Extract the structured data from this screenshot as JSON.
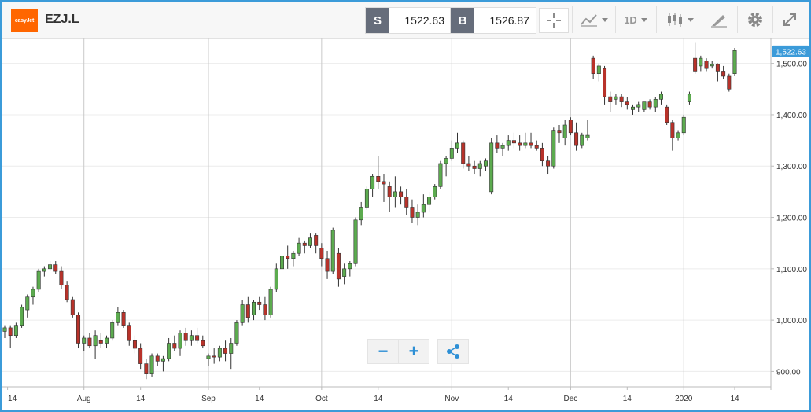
{
  "header": {
    "logo_text": "easyJet",
    "symbol": "EZJ.L",
    "sell_letter": "S",
    "sell_price": "1522.63",
    "buy_letter": "B",
    "buy_price": "1526.87",
    "interval_label": "1D"
  },
  "icons": {
    "crosshair": "crosshair-icon",
    "chart_type": "line-chart-icon",
    "candles": "candlestick-icon",
    "draw": "pencil-ruler-icon",
    "settings": "gear-icon",
    "fullscreen": "expand-icon",
    "zoom_out": "minus-icon",
    "zoom_in": "plus-icon",
    "share": "share-icon"
  },
  "zoom": {
    "out_label": "−",
    "in_label": "+"
  },
  "colors": {
    "up": "#5cab4f",
    "down": "#b8322a",
    "accent": "#3b9bd9",
    "grid": "#ececec",
    "month_line": "#c9c9c9"
  },
  "chart_data": {
    "type": "candlestick",
    "ylim": [
      870,
      1550
    ],
    "yticks": [
      900,
      1000,
      1100,
      1200,
      1300,
      1400,
      1500
    ],
    "ytick_labels": [
      "900.00",
      "1,000.00",
      "1,100.00",
      "1,200.00",
      "1,300.00",
      "1,400.00",
      "1,500.00"
    ],
    "last_price": 1522.63,
    "last_price_label": "1,522.63",
    "x_labels": [
      {
        "label": "14",
        "bar": 0.5,
        "month": false
      },
      {
        "label": "Aug",
        "bar": 14,
        "month": true
      },
      {
        "label": "14",
        "bar": 24,
        "month": false
      },
      {
        "label": "Sep",
        "bar": 36,
        "month": true
      },
      {
        "label": "14",
        "bar": 45,
        "month": false
      },
      {
        "label": "Oct",
        "bar": 56,
        "month": true
      },
      {
        "label": "14",
        "bar": 66,
        "month": false
      },
      {
        "label": "Nov",
        "bar": 79,
        "month": true
      },
      {
        "label": "14",
        "bar": 89,
        "month": false
      },
      {
        "label": "Dec",
        "bar": 100,
        "month": true
      },
      {
        "label": "14",
        "bar": 110,
        "month": false
      },
      {
        "label": "2020",
        "bar": 120,
        "month": true
      },
      {
        "label": "14",
        "bar": 129,
        "month": false
      }
    ],
    "ohlc": [
      [
        978,
        990,
        965,
        985
      ],
      [
        985,
        990,
        945,
        970
      ],
      [
        970,
        995,
        965,
        990
      ],
      [
        990,
        1030,
        985,
        1025
      ],
      [
        1020,
        1050,
        1005,
        1045
      ],
      [
        1045,
        1065,
        1030,
        1060
      ],
      [
        1060,
        1100,
        1055,
        1095
      ],
      [
        1095,
        1105,
        1085,
        1100
      ],
      [
        1100,
        1115,
        1095,
        1108
      ],
      [
        1108,
        1115,
        1090,
        1095
      ],
      [
        1095,
        1105,
        1060,
        1068
      ],
      [
        1068,
        1075,
        1035,
        1040
      ],
      [
        1040,
        1045,
        1005,
        1010
      ],
      [
        1010,
        1015,
        945,
        955
      ],
      [
        955,
        970,
        940,
        965
      ],
      [
        965,
        975,
        945,
        950
      ],
      [
        950,
        980,
        925,
        970
      ],
      [
        960,
        975,
        945,
        955
      ],
      [
        955,
        970,
        945,
        965
      ],
      [
        965,
        1000,
        960,
        995
      ],
      [
        995,
        1025,
        990,
        1015
      ],
      [
        1015,
        1020,
        985,
        990
      ],
      [
        990,
        995,
        950,
        960
      ],
      [
        960,
        970,
        935,
        945
      ],
      [
        945,
        955,
        905,
        915
      ],
      [
        915,
        925,
        885,
        895
      ],
      [
        895,
        935,
        890,
        930
      ],
      [
        930,
        935,
        910,
        920
      ],
      [
        920,
        930,
        900,
        925
      ],
      [
        925,
        965,
        920,
        955
      ],
      [
        955,
        970,
        940,
        945
      ],
      [
        945,
        980,
        930,
        975
      ],
      [
        975,
        985,
        950,
        960
      ],
      [
        960,
        980,
        950,
        970
      ],
      [
        970,
        985,
        955,
        960
      ],
      [
        960,
        970,
        945,
        950
      ],
      [
        925,
        935,
        910,
        930
      ],
      [
        930,
        945,
        915,
        928
      ],
      [
        928,
        950,
        920,
        945
      ],
      [
        945,
        960,
        920,
        935
      ],
      [
        935,
        965,
        905,
        955
      ],
      [
        955,
        1000,
        950,
        995
      ],
      [
        995,
        1040,
        990,
        1030
      ],
      [
        1030,
        1045,
        995,
        1005
      ],
      [
        1010,
        1040,
        1000,
        1035
      ],
      [
        1035,
        1045,
        1020,
        1030
      ],
      [
        1030,
        1045,
        1000,
        1010
      ],
      [
        1010,
        1065,
        1005,
        1060
      ],
      [
        1060,
        1110,
        1055,
        1100
      ],
      [
        1100,
        1130,
        1090,
        1125
      ],
      [
        1125,
        1145,
        1100,
        1120
      ],
      [
        1120,
        1135,
        1105,
        1130
      ],
      [
        1130,
        1160,
        1125,
        1150
      ],
      [
        1150,
        1155,
        1130,
        1145
      ],
      [
        1145,
        1170,
        1140,
        1160
      ],
      [
        1165,
        1170,
        1130,
        1145
      ],
      [
        1140,
        1150,
        1105,
        1120
      ],
      [
        1120,
        1135,
        1080,
        1095
      ],
      [
        1095,
        1180,
        1090,
        1175
      ],
      [
        1130,
        1140,
        1065,
        1080
      ],
      [
        1085,
        1110,
        1070,
        1100
      ],
      [
        1100,
        1115,
        1085,
        1110
      ],
      [
        1110,
        1200,
        1105,
        1195
      ],
      [
        1195,
        1230,
        1185,
        1220
      ],
      [
        1220,
        1260,
        1215,
        1255
      ],
      [
        1255,
        1285,
        1240,
        1280
      ],
      [
        1280,
        1320,
        1255,
        1270
      ],
      [
        1270,
        1285,
        1230,
        1265
      ],
      [
        1260,
        1270,
        1210,
        1240
      ],
      [
        1240,
        1280,
        1220,
        1250
      ],
      [
        1250,
        1260,
        1225,
        1240
      ],
      [
        1240,
        1255,
        1205,
        1220
      ],
      [
        1220,
        1235,
        1190,
        1200
      ],
      [
        1200,
        1225,
        1185,
        1210
      ],
      [
        1210,
        1245,
        1200,
        1225
      ],
      [
        1225,
        1250,
        1210,
        1240
      ],
      [
        1240,
        1265,
        1235,
        1260
      ],
      [
        1260,
        1310,
        1255,
        1305
      ],
      [
        1305,
        1320,
        1280,
        1315
      ],
      [
        1315,
        1350,
        1310,
        1335
      ],
      [
        1335,
        1365,
        1325,
        1345
      ],
      [
        1345,
        1350,
        1295,
        1305
      ],
      [
        1305,
        1320,
        1290,
        1300
      ],
      [
        1300,
        1310,
        1285,
        1295
      ],
      [
        1295,
        1310,
        1280,
        1305
      ],
      [
        1300,
        1315,
        1290,
        1310
      ],
      [
        1250,
        1355,
        1245,
        1345
      ],
      [
        1345,
        1360,
        1325,
        1335
      ],
      [
        1335,
        1345,
        1320,
        1340
      ],
      [
        1340,
        1360,
        1330,
        1350
      ],
      [
        1350,
        1365,
        1335,
        1345
      ],
      [
        1345,
        1360,
        1330,
        1340
      ],
      [
        1340,
        1365,
        1335,
        1345
      ],
      [
        1345,
        1365,
        1335,
        1340
      ],
      [
        1340,
        1350,
        1330,
        1335
      ],
      [
        1335,
        1345,
        1300,
        1310
      ],
      [
        1310,
        1320,
        1285,
        1300
      ],
      [
        1300,
        1375,
        1295,
        1370
      ],
      [
        1370,
        1380,
        1345,
        1365
      ],
      [
        1355,
        1390,
        1340,
        1380
      ],
      [
        1390,
        1395,
        1360,
        1365
      ],
      [
        1365,
        1385,
        1330,
        1340
      ],
      [
        1340,
        1365,
        1335,
        1360
      ],
      [
        1355,
        1390,
        1350,
        1360
      ],
      [
        1510,
        1515,
        1470,
        1480
      ],
      [
        1480,
        1500,
        1465,
        1495
      ],
      [
        1490,
        1495,
        1420,
        1435
      ],
      [
        1435,
        1445,
        1405,
        1425
      ],
      [
        1430,
        1440,
        1420,
        1435
      ],
      [
        1435,
        1440,
        1415,
        1425
      ],
      [
        1425,
        1435,
        1410,
        1420
      ],
      [
        1410,
        1420,
        1400,
        1415
      ],
      [
        1415,
        1425,
        1405,
        1420
      ],
      [
        1410,
        1425,
        1405,
        1425
      ],
      [
        1425,
        1430,
        1410,
        1415
      ],
      [
        1415,
        1435,
        1405,
        1430
      ],
      [
        1430,
        1445,
        1420,
        1440
      ],
      [
        1415,
        1420,
        1380,
        1385
      ],
      [
        1385,
        1390,
        1330,
        1355
      ],
      [
        1355,
        1370,
        1350,
        1365
      ],
      [
        1365,
        1400,
        1360,
        1395
      ],
      [
        1425,
        1445,
        1420,
        1440
      ],
      [
        1510,
        1540,
        1480,
        1485
      ],
      [
        1495,
        1515,
        1485,
        1510
      ],
      [
        1505,
        1510,
        1485,
        1490
      ],
      [
        1495,
        1505,
        1490,
        1498
      ],
      [
        1498,
        1500,
        1465,
        1485
      ],
      [
        1485,
        1495,
        1470,
        1475
      ],
      [
        1475,
        1480,
        1445,
        1450
      ],
      [
        1480,
        1530,
        1475,
        1525
      ]
    ]
  }
}
